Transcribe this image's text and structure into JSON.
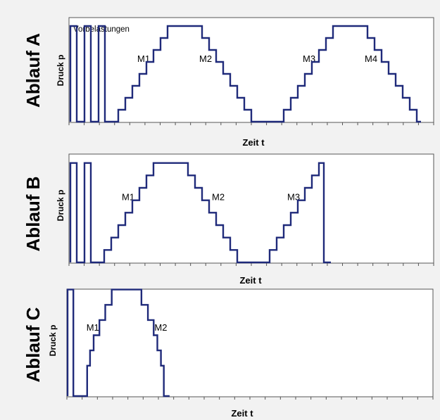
{
  "colors": {
    "line": "#1f2a7a",
    "axis": "#555555",
    "background": "#f2f2f2",
    "plot": "#ffffff"
  },
  "chart_data": [
    {
      "type": "line",
      "side_label": "Ablauf A",
      "ylabel": "Druck p",
      "xlabel": "Zeit t",
      "top_annotation": "Vorbelastungen",
      "annotations": [
        {
          "text": "M1",
          "x": 95,
          "y": 5.0
        },
        {
          "text": "M2",
          "x": 183,
          "y": 5.0
        },
        {
          "text": "M3",
          "x": 330,
          "y": 5.0
        },
        {
          "text": "M4",
          "x": 418,
          "y": 5.0
        }
      ],
      "xlim": [
        0,
        500
      ],
      "ylim": [
        0,
        9
      ],
      "ticks": 24,
      "points": [
        [
          0,
          0
        ],
        [
          0,
          8
        ],
        [
          9,
          8
        ],
        [
          9,
          0
        ],
        [
          20,
          0
        ],
        [
          20,
          8
        ],
        [
          29,
          8
        ],
        [
          29,
          0
        ],
        [
          40,
          0
        ],
        [
          40,
          8
        ],
        [
          49,
          8
        ],
        [
          49,
          0
        ],
        [
          68,
          0
        ],
        [
          68,
          1
        ],
        [
          78,
          1
        ],
        [
          78,
          2
        ],
        [
          88,
          2
        ],
        [
          88,
          3
        ],
        [
          98,
          3
        ],
        [
          98,
          4
        ],
        [
          108,
          4
        ],
        [
          108,
          5
        ],
        [
          118,
          5
        ],
        [
          118,
          6
        ],
        [
          128,
          6
        ],
        [
          128,
          7
        ],
        [
          138,
          7
        ],
        [
          138,
          8
        ],
        [
          187,
          8
        ],
        [
          187,
          7
        ],
        [
          197,
          7
        ],
        [
          197,
          6
        ],
        [
          207,
          6
        ],
        [
          207,
          5
        ],
        [
          217,
          5
        ],
        [
          217,
          4
        ],
        [
          227,
          4
        ],
        [
          227,
          3
        ],
        [
          237,
          3
        ],
        [
          237,
          2
        ],
        [
          247,
          2
        ],
        [
          247,
          1
        ],
        [
          257,
          1
        ],
        [
          257,
          0
        ],
        [
          303,
          0
        ],
        [
          303,
          1
        ],
        [
          313,
          1
        ],
        [
          313,
          2
        ],
        [
          323,
          2
        ],
        [
          323,
          3
        ],
        [
          333,
          3
        ],
        [
          333,
          4
        ],
        [
          343,
          4
        ],
        [
          343,
          5
        ],
        [
          353,
          5
        ],
        [
          353,
          6
        ],
        [
          363,
          6
        ],
        [
          363,
          7
        ],
        [
          373,
          7
        ],
        [
          373,
          8
        ],
        [
          422,
          8
        ],
        [
          422,
          7
        ],
        [
          432,
          7
        ],
        [
          432,
          6
        ],
        [
          442,
          6
        ],
        [
          442,
          5
        ],
        [
          452,
          5
        ],
        [
          452,
          4
        ],
        [
          462,
          4
        ],
        [
          462,
          3
        ],
        [
          472,
          3
        ],
        [
          472,
          2
        ],
        [
          482,
          2
        ],
        [
          482,
          1
        ],
        [
          492,
          1
        ],
        [
          492,
          0
        ],
        [
          498,
          0
        ]
      ]
    },
    {
      "type": "line",
      "side_label": "Ablauf B",
      "ylabel": "Druck p",
      "xlabel": "Zeit t",
      "annotations": [
        {
          "text": "M1",
          "x": 73,
          "y": 5.0
        },
        {
          "text": "M2",
          "x": 201,
          "y": 5.0
        },
        {
          "text": "M3",
          "x": 308,
          "y": 5.0
        }
      ],
      "xlim": [
        0,
        500
      ],
      "ylim": [
        0,
        9
      ],
      "ticks": 24,
      "points": [
        [
          0,
          0
        ],
        [
          0,
          8
        ],
        [
          9,
          8
        ],
        [
          9,
          0
        ],
        [
          20,
          0
        ],
        [
          20,
          8
        ],
        [
          29,
          8
        ],
        [
          29,
          0
        ],
        [
          48,
          0
        ],
        [
          48,
          1
        ],
        [
          58,
          1
        ],
        [
          58,
          2
        ],
        [
          68,
          2
        ],
        [
          68,
          3
        ],
        [
          78,
          3
        ],
        [
          78,
          4
        ],
        [
          88,
          4
        ],
        [
          88,
          5
        ],
        [
          98,
          5
        ],
        [
          98,
          6
        ],
        [
          108,
          6
        ],
        [
          108,
          7
        ],
        [
          118,
          7
        ],
        [
          118,
          8
        ],
        [
          167,
          8
        ],
        [
          167,
          7
        ],
        [
          177,
          7
        ],
        [
          177,
          6
        ],
        [
          187,
          6
        ],
        [
          187,
          5
        ],
        [
          197,
          5
        ],
        [
          197,
          4
        ],
        [
          207,
          4
        ],
        [
          207,
          3
        ],
        [
          217,
          3
        ],
        [
          217,
          2
        ],
        [
          227,
          2
        ],
        [
          227,
          1
        ],
        [
          237,
          1
        ],
        [
          237,
          0
        ],
        [
          283,
          0
        ],
        [
          283,
          1
        ],
        [
          293,
          1
        ],
        [
          293,
          2
        ],
        [
          303,
          2
        ],
        [
          303,
          3
        ],
        [
          313,
          3
        ],
        [
          313,
          4
        ],
        [
          323,
          4
        ],
        [
          323,
          5
        ],
        [
          333,
          5
        ],
        [
          333,
          6
        ],
        [
          343,
          6
        ],
        [
          343,
          7
        ],
        [
          353,
          7
        ],
        [
          353,
          8
        ],
        [
          360,
          8
        ],
        [
          360,
          0
        ],
        [
          370,
          0
        ]
      ]
    },
    {
      "type": "line",
      "side_label": "Ablauf C",
      "ylabel": "Druck p",
      "xlabel": "Zeit t",
      "annotations": [
        {
          "text": "M1",
          "x": 26,
          "y": 4.3
        },
        {
          "text": "M2",
          "x": 120,
          "y": 4.3
        }
      ],
      "xlim": [
        0,
        500
      ],
      "ylim": [
        0,
        7.4
      ],
      "ticks": 24,
      "points": [
        [
          0,
          0
        ],
        [
          0,
          7
        ],
        [
          8,
          7
        ],
        [
          8,
          0
        ],
        [
          27,
          0
        ],
        [
          27,
          2
        ],
        [
          31,
          2
        ],
        [
          31,
          3
        ],
        [
          36,
          3
        ],
        [
          36,
          4
        ],
        [
          44,
          4
        ],
        [
          44,
          5
        ],
        [
          52,
          5
        ],
        [
          52,
          6
        ],
        [
          61,
          6
        ],
        [
          61,
          7
        ],
        [
          102,
          7
        ],
        [
          102,
          6
        ],
        [
          111,
          6
        ],
        [
          111,
          5
        ],
        [
          119,
          5
        ],
        [
          119,
          4
        ],
        [
          124,
          4
        ],
        [
          124,
          3
        ],
        [
          129,
          3
        ],
        [
          129,
          2
        ],
        [
          133,
          2
        ],
        [
          133,
          0
        ],
        [
          141,
          0
        ]
      ]
    }
  ]
}
